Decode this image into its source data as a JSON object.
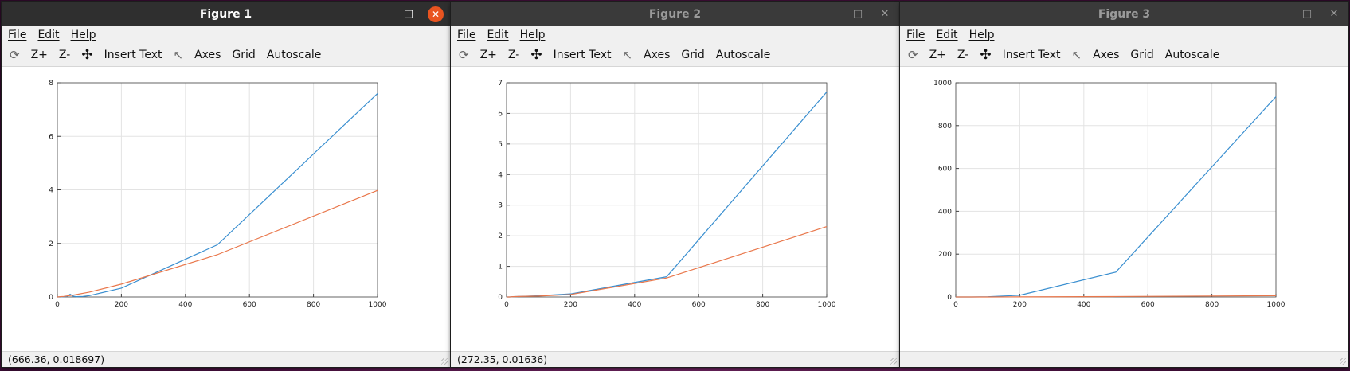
{
  "menu": {
    "file": "File",
    "edit": "Edit",
    "help": "Help"
  },
  "toolbar": {
    "zoom_in": "Z+",
    "zoom_out": "Z-",
    "insert_text": "Insert Text",
    "axes": "Axes",
    "grid": "Grid",
    "autoscale": "Autoscale"
  },
  "icons": {
    "rotate": "rotate-icon",
    "pan": "pan-icon",
    "select": "cursor-icon",
    "minimize": "minimize-icon",
    "maximize": "maximize-icon",
    "close": "close-icon"
  },
  "colors": {
    "series_1": "#3a8fd0",
    "series_2": "#e9774b",
    "close_active": "#e95420"
  },
  "windows": [
    {
      "title": "Figure 1",
      "status": "(666.36, 0.018697)",
      "active": true
    },
    {
      "title": "Figure 2",
      "status": "(272.35, 0.01636)",
      "active": false
    },
    {
      "title": "Figure 3",
      "status": "",
      "active": false
    }
  ],
  "chart_data": [
    {
      "type": "line",
      "xlim": [
        0,
        1000
      ],
      "ylim": [
        0,
        8
      ],
      "xticks": [
        0,
        200,
        400,
        600,
        800,
        1000
      ],
      "yticks": [
        0,
        2,
        4,
        6,
        8
      ],
      "grid": true,
      "series": [
        {
          "x": [
            0,
            10,
            20,
            30,
            40,
            50,
            60,
            80,
            100,
            200,
            500,
            1000
          ],
          "y": [
            0,
            0,
            0.01,
            0.02,
            0.1,
            0.03,
            0.01,
            0.02,
            0.05,
            0.33,
            1.95,
            7.6
          ]
        },
        {
          "x": [
            0,
            10,
            20,
            50,
            100,
            200,
            500,
            1000
          ],
          "y": [
            0,
            0.01,
            0.02,
            0.07,
            0.18,
            0.48,
            1.58,
            3.98
          ]
        }
      ]
    },
    {
      "type": "line",
      "xlim": [
        0,
        1000
      ],
      "ylim": [
        0,
        7
      ],
      "xticks": [
        0,
        200,
        400,
        600,
        800,
        1000
      ],
      "yticks": [
        0,
        1,
        2,
        3,
        4,
        5,
        6,
        7
      ],
      "grid": true,
      "series": [
        {
          "x": [
            0,
            10,
            20,
            50,
            100,
            200,
            500,
            1000
          ],
          "y": [
            0,
            0,
            0.01,
            0.02,
            0.04,
            0.1,
            0.66,
            6.7
          ]
        },
        {
          "x": [
            0,
            10,
            20,
            50,
            100,
            200,
            500,
            1000
          ],
          "y": [
            0,
            0,
            0.01,
            0.02,
            0.03,
            0.08,
            0.62,
            2.3
          ]
        }
      ]
    },
    {
      "type": "line",
      "xlim": [
        0,
        1000
      ],
      "ylim": [
        0,
        1000
      ],
      "xticks": [
        0,
        200,
        400,
        600,
        800,
        1000
      ],
      "yticks": [
        0,
        200,
        400,
        600,
        800,
        1000
      ],
      "grid": true,
      "series": [
        {
          "x": [
            0,
            10,
            20,
            50,
            100,
            200,
            500,
            1000
          ],
          "y": [
            0,
            0,
            0,
            0,
            1,
            8,
            116,
            935
          ]
        },
        {
          "x": [
            0,
            10,
            20,
            50,
            100,
            200,
            500,
            1000
          ],
          "y": [
            0,
            0,
            0,
            0,
            0,
            0.5,
            2,
            6
          ]
        }
      ]
    }
  ]
}
